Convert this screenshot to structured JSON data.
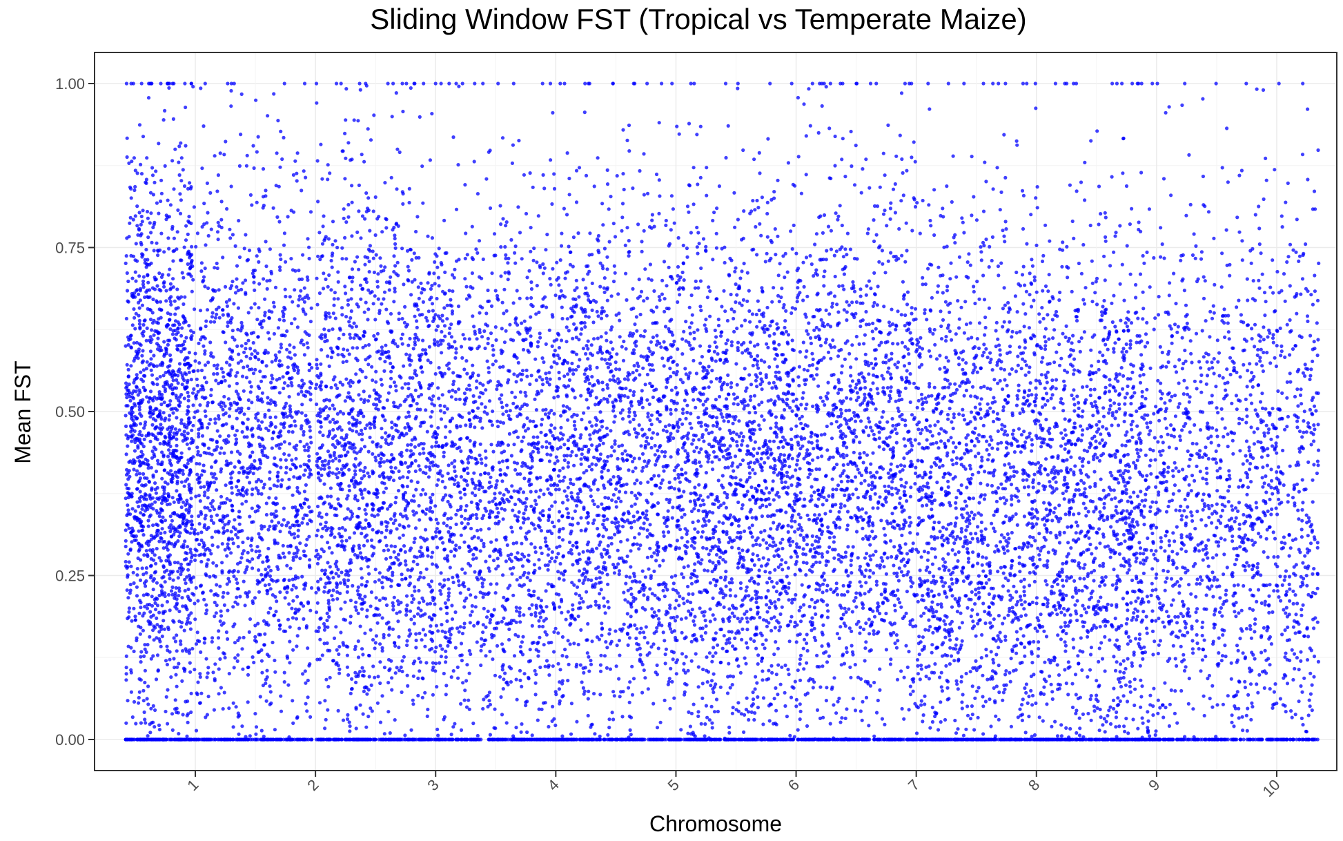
{
  "chart_data": {
    "type": "scatter",
    "title": "Sliding Window FST (Tropical vs Temperate Maize)",
    "xlabel": "Chromosome",
    "ylabel": "Mean FST",
    "ylim": [
      0,
      1
    ],
    "y_ticks": [
      {
        "value": 0.0,
        "label": "0.00"
      },
      {
        "value": 0.25,
        "label": "0.25"
      },
      {
        "value": 0.5,
        "label": "0.50"
      },
      {
        "value": 0.75,
        "label": "0.75"
      },
      {
        "value": 1.0,
        "label": "1.00"
      }
    ],
    "x_ticks": [
      {
        "value": 1,
        "label": "1"
      },
      {
        "value": 2,
        "label": "2"
      },
      {
        "value": 3,
        "label": "3"
      },
      {
        "value": 4,
        "label": "4"
      },
      {
        "value": 5,
        "label": "5"
      },
      {
        "value": 6,
        "label": "6"
      },
      {
        "value": 7,
        "label": "7"
      },
      {
        "value": 8,
        "label": "8"
      },
      {
        "value": 9,
        "label": "9"
      },
      {
        "value": 10,
        "label": "10"
      }
    ],
    "grid": true,
    "theme": "bw",
    "point_color": "#0000ff",
    "series": [
      {
        "chromosome_segments": [
          {
            "chromosome": 1,
            "x_start": 0.42,
            "x_end": 0.97,
            "mean": 0.45
          },
          {
            "chromosome": 2,
            "x_start": 0.97,
            "x_end": 1.97,
            "mean": 0.42
          },
          {
            "chromosome": 3,
            "x_start": 2.0,
            "x_end": 2.9,
            "mean": 0.43
          },
          {
            "chromosome": 4,
            "x_start": 2.9,
            "x_end": 3.98,
            "mean": 0.38
          },
          {
            "chromosome": 5,
            "x_start": 3.98,
            "x_end": 5.0,
            "mean": 0.4
          },
          {
            "chromosome": 6,
            "x_start": 5.0,
            "x_end": 5.9,
            "mean": 0.37
          },
          {
            "chromosome": 7,
            "x_start": 5.9,
            "x_end": 6.92,
            "mean": 0.4
          },
          {
            "chromosome": 8,
            "x_start": 6.92,
            "x_end": 7.95,
            "mean": 0.36
          },
          {
            "chromosome": 9,
            "x_start": 7.95,
            "x_end": 8.95,
            "mean": 0.33
          },
          {
            "chromosome": 10,
            "x_start": 8.95,
            "x_end": 10.35,
            "mean": 0.36
          }
        ],
        "points_per_segment": 1600
      }
    ]
  }
}
